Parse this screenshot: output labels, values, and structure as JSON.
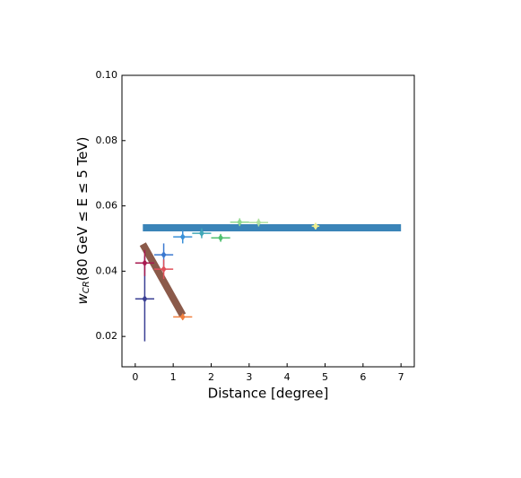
{
  "chart_data": {
    "type": "scatter",
    "xlabel": "Distance [degree]",
    "ylabel": {
      "main": "w",
      "sub": "CR",
      "rest": "(80 GeV ≤ E ≤ 5 TeV)"
    },
    "xlim": [
      -0.35,
      7.35
    ],
    "ylim": [
      0.0107,
      0.1
    ],
    "xticks": [
      0,
      1,
      2,
      3,
      4,
      5,
      6,
      7
    ],
    "yticks": [
      0.02,
      0.04,
      0.06,
      0.08,
      {
        "value": 0.1,
        "label": "0.10"
      }
    ],
    "points": [
      {
        "x": 0.25,
        "y": 0.0315,
        "xerr": 0.25,
        "yerr": 0.013,
        "color": "#3a3f94"
      },
      {
        "x": 0.25,
        "y": 0.0425,
        "xerr": 0.25,
        "yerr": 0.004,
        "color": "#a81a50"
      },
      {
        "x": 0.75,
        "y": 0.045,
        "xerr": 0.25,
        "yerr": 0.0035,
        "color": "#3a78d0"
      },
      {
        "x": 0.75,
        "y": 0.0406,
        "xerr": 0.25,
        "yerr": 0.003,
        "color": "#e0505a"
      },
      {
        "x": 1.25,
        "y": 0.026,
        "xerr": 0.25,
        "yerr": 0.001,
        "color": "#f08040"
      },
      {
        "x": 1.25,
        "y": 0.0505,
        "xerr": 0.25,
        "yerr": 0.002,
        "color": "#3a90d8"
      },
      {
        "x": 1.75,
        "y": 0.0516,
        "xerr": 0.25,
        "yerr": 0.0015,
        "color": "#40a8b8"
      },
      {
        "x": 2.25,
        "y": 0.0502,
        "xerr": 0.25,
        "yerr": 0.0012,
        "color": "#50c070"
      },
      {
        "x": 2.75,
        "y": 0.055,
        "xerr": 0.25,
        "yerr": 0.0012,
        "color": "#90d890"
      },
      {
        "x": 3.25,
        "y": 0.0549,
        "xerr": 0.25,
        "yerr": 0.0012,
        "color": "#b0e0a0"
      },
      {
        "x": 4.75,
        "y": 0.0538,
        "xerr": 0.1,
        "yerr": 0.001,
        "color": "#eeee90"
      }
    ],
    "lines": [
      {
        "x": [
          0.2,
          7.0
        ],
        "values": [
          0.0533,
          0.0533
        ],
        "color": "#3a84b8"
      },
      {
        "x": [
          0.2,
          1.25
        ],
        "values": [
          0.0483,
          0.0265
        ],
        "color": "#8b5a4a"
      }
    ]
  }
}
